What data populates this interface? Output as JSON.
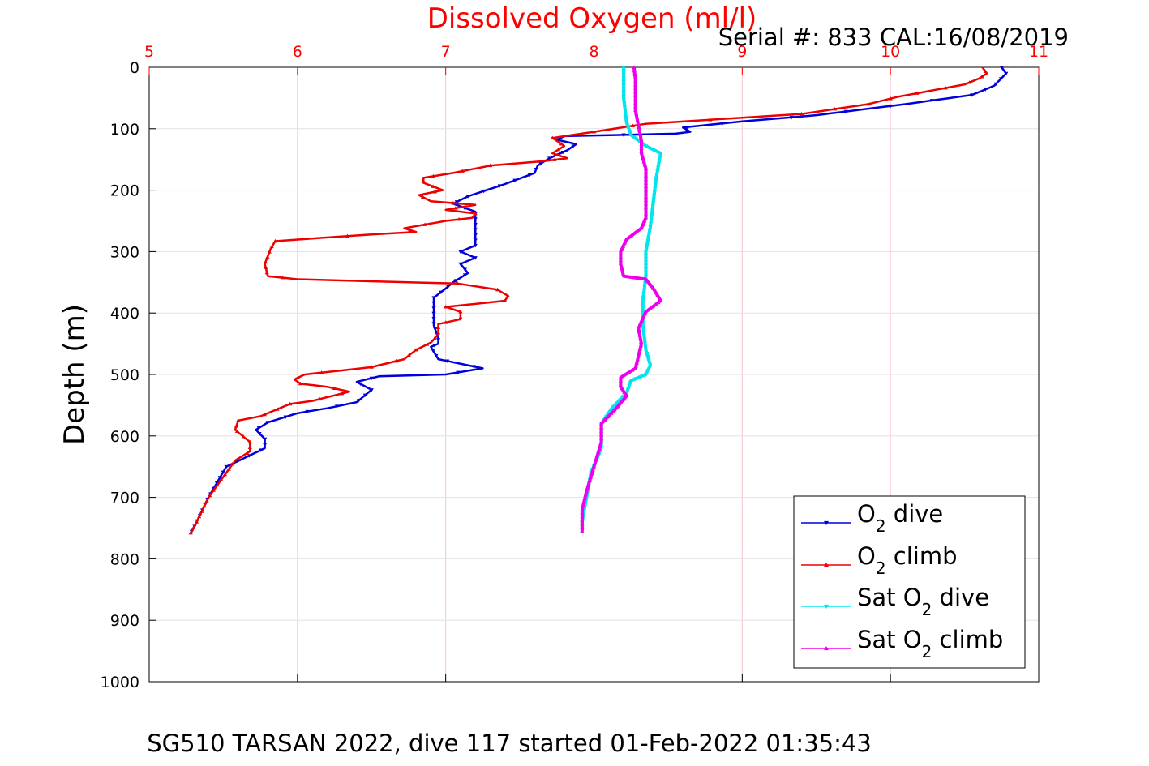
{
  "chart_data": {
    "type": "line",
    "title": "Dissolved Oxygen (ml/l)",
    "annotation": "Serial #: 833  CAL:16/08/2019",
    "footer": "SG510 TARSAN 2022, dive 117 started 01-Feb-2022 01:35:43",
    "xlabel": "",
    "ylabel": "Depth (m)",
    "xlim": [
      5,
      11
    ],
    "ylim": [
      0,
      1000
    ],
    "y_reversed": true,
    "x_axis_position": "top",
    "x_ticks": [
      "5",
      "6",
      "7",
      "8",
      "9",
      "10",
      "11"
    ],
    "y_ticks": [
      "0",
      "100",
      "200",
      "300",
      "400",
      "500",
      "600",
      "700",
      "800",
      "900",
      "1000"
    ],
    "grid": true,
    "legend_position": "bottom-right",
    "series": [
      {
        "name": "O2 dive",
        "legend_main": "O",
        "legend_sub": "2",
        "legend_rest": " dive",
        "color": "#0000dd",
        "marker": "triangle-down",
        "points": [
          [
            10.75,
            0
          ],
          [
            10.78,
            10
          ],
          [
            10.7,
            30
          ],
          [
            10.55,
            45
          ],
          [
            10.1,
            60
          ],
          [
            9.5,
            78
          ],
          [
            9.0,
            88
          ],
          [
            8.6,
            98
          ],
          [
            8.65,
            105
          ],
          [
            8.55,
            108
          ],
          [
            8.2,
            110
          ],
          [
            7.8,
            112
          ],
          [
            7.75,
            118
          ],
          [
            7.88,
            125
          ],
          [
            7.82,
            135
          ],
          [
            7.7,
            148
          ],
          [
            7.62,
            160
          ],
          [
            7.6,
            172
          ],
          [
            7.4,
            190
          ],
          [
            7.15,
            210
          ],
          [
            7.05,
            222
          ],
          [
            7.2,
            235
          ],
          [
            7.2,
            250
          ],
          [
            7.2,
            270
          ],
          [
            7.2,
            290
          ],
          [
            7.1,
            300
          ],
          [
            7.2,
            310
          ],
          [
            7.1,
            320
          ],
          [
            7.15,
            335
          ],
          [
            7.05,
            350
          ],
          [
            7.0,
            360
          ],
          [
            6.92,
            375
          ],
          [
            6.92,
            395
          ],
          [
            6.92,
            420
          ],
          [
            6.95,
            440
          ],
          [
            6.95,
            450
          ],
          [
            6.9,
            455
          ],
          [
            6.95,
            475
          ],
          [
            7.25,
            490
          ],
          [
            7.0,
            500
          ],
          [
            6.55,
            503
          ],
          [
            6.4,
            512
          ],
          [
            6.5,
            525
          ],
          [
            6.4,
            545
          ],
          [
            6.2,
            555
          ],
          [
            6.0,
            563
          ],
          [
            5.8,
            578
          ],
          [
            5.72,
            590
          ],
          [
            5.78,
            605
          ],
          [
            5.78,
            620
          ],
          [
            5.65,
            635
          ],
          [
            5.52,
            650
          ],
          [
            5.4,
            700
          ],
          [
            5.3,
            750
          ],
          [
            5.28,
            758
          ]
        ]
      },
      {
        "name": "O2 climb",
        "legend_main": "O",
        "legend_sub": "2",
        "legend_rest": " climb",
        "color": "#ee0000",
        "marker": "triangle-up",
        "points": [
          [
            5.28,
            758
          ],
          [
            5.32,
            740
          ],
          [
            5.4,
            700
          ],
          [
            5.58,
            640
          ],
          [
            5.68,
            625
          ],
          [
            5.68,
            610
          ],
          [
            5.62,
            598
          ],
          [
            5.58,
            590
          ],
          [
            5.6,
            575
          ],
          [
            5.75,
            568
          ],
          [
            5.95,
            548
          ],
          [
            6.1,
            543
          ],
          [
            6.35,
            528
          ],
          [
            6.2,
            520
          ],
          [
            6.02,
            515
          ],
          [
            5.98,
            508
          ],
          [
            6.05,
            500
          ],
          [
            6.5,
            488
          ],
          [
            6.72,
            475
          ],
          [
            6.8,
            460
          ],
          [
            6.9,
            448
          ],
          [
            6.95,
            435
          ],
          [
            6.95,
            418
          ],
          [
            7.1,
            410
          ],
          [
            7.1,
            398
          ],
          [
            7.0,
            390
          ],
          [
            7.4,
            380
          ],
          [
            7.42,
            372
          ],
          [
            7.35,
            362
          ],
          [
            7.08,
            352
          ],
          [
            6.0,
            345
          ],
          [
            5.8,
            340
          ],
          [
            5.78,
            320
          ],
          [
            5.82,
            295
          ],
          [
            5.85,
            283
          ],
          [
            6.5,
            272
          ],
          [
            6.8,
            268
          ],
          [
            6.72,
            262
          ],
          [
            7.0,
            250
          ],
          [
            7.18,
            245
          ],
          [
            7.2,
            238
          ],
          [
            7.0,
            232
          ],
          [
            7.2,
            224
          ],
          [
            6.9,
            218
          ],
          [
            6.82,
            208
          ],
          [
            6.98,
            200
          ],
          [
            6.85,
            188
          ],
          [
            6.85,
            180
          ],
          [
            7.05,
            172
          ],
          [
            7.3,
            160
          ],
          [
            7.65,
            153
          ],
          [
            7.82,
            148
          ],
          [
            7.72,
            140
          ],
          [
            7.8,
            128
          ],
          [
            7.72,
            115
          ],
          [
            8.0,
            105
          ],
          [
            8.35,
            92
          ],
          [
            9.0,
            82
          ],
          [
            9.4,
            76
          ],
          [
            9.85,
            60
          ],
          [
            10.05,
            48
          ],
          [
            10.5,
            28
          ],
          [
            10.6,
            18
          ],
          [
            10.65,
            10
          ],
          [
            10.62,
            0
          ]
        ]
      },
      {
        "name": "Sat O2 dive",
        "legend_main": "Sat O",
        "legend_sub": "2",
        "legend_rest": " dive",
        "color": "#00e5ee",
        "marker": "triangle-down",
        "points": [
          [
            8.2,
            0
          ],
          [
            8.2,
            50
          ],
          [
            8.22,
            90
          ],
          [
            8.25,
            110
          ],
          [
            8.35,
            128
          ],
          [
            8.45,
            140
          ],
          [
            8.42,
            180
          ],
          [
            8.4,
            220
          ],
          [
            8.38,
            260
          ],
          [
            8.35,
            300
          ],
          [
            8.35,
            340
          ],
          [
            8.33,
            380
          ],
          [
            8.33,
            420
          ],
          [
            8.35,
            460
          ],
          [
            8.38,
            485
          ],
          [
            8.35,
            500
          ],
          [
            8.25,
            510
          ],
          [
            8.22,
            530
          ],
          [
            8.12,
            555
          ],
          [
            8.05,
            580
          ],
          [
            8.05,
            620
          ],
          [
            7.98,
            660
          ],
          [
            7.95,
            700
          ],
          [
            7.92,
            740
          ],
          [
            7.92,
            755
          ]
        ]
      },
      {
        "name": "Sat O2 climb",
        "legend_main": "Sat O",
        "legend_sub": "2",
        "legend_rest": " climb",
        "color": "#ee00ee",
        "marker": "triangle-up",
        "points": [
          [
            7.92,
            755
          ],
          [
            7.92,
            720
          ],
          [
            7.95,
            690
          ],
          [
            8.0,
            650
          ],
          [
            8.05,
            610
          ],
          [
            8.05,
            580
          ],
          [
            8.15,
            555
          ],
          [
            8.22,
            535
          ],
          [
            8.18,
            520
          ],
          [
            8.18,
            505
          ],
          [
            8.28,
            490
          ],
          [
            8.3,
            470
          ],
          [
            8.32,
            450
          ],
          [
            8.3,
            425
          ],
          [
            8.35,
            398
          ],
          [
            8.45,
            380
          ],
          [
            8.4,
            360
          ],
          [
            8.35,
            345
          ],
          [
            8.2,
            340
          ],
          [
            8.18,
            320
          ],
          [
            8.18,
            300
          ],
          [
            8.22,
            280
          ],
          [
            8.32,
            262
          ],
          [
            8.35,
            245
          ],
          [
            8.35,
            225
          ],
          [
            8.35,
            200
          ],
          [
            8.35,
            165
          ],
          [
            8.32,
            140
          ],
          [
            8.32,
            120
          ],
          [
            8.3,
            95
          ],
          [
            8.28,
            70
          ],
          [
            8.28,
            40
          ],
          [
            8.28,
            20
          ],
          [
            8.27,
            0
          ]
        ]
      }
    ]
  }
}
